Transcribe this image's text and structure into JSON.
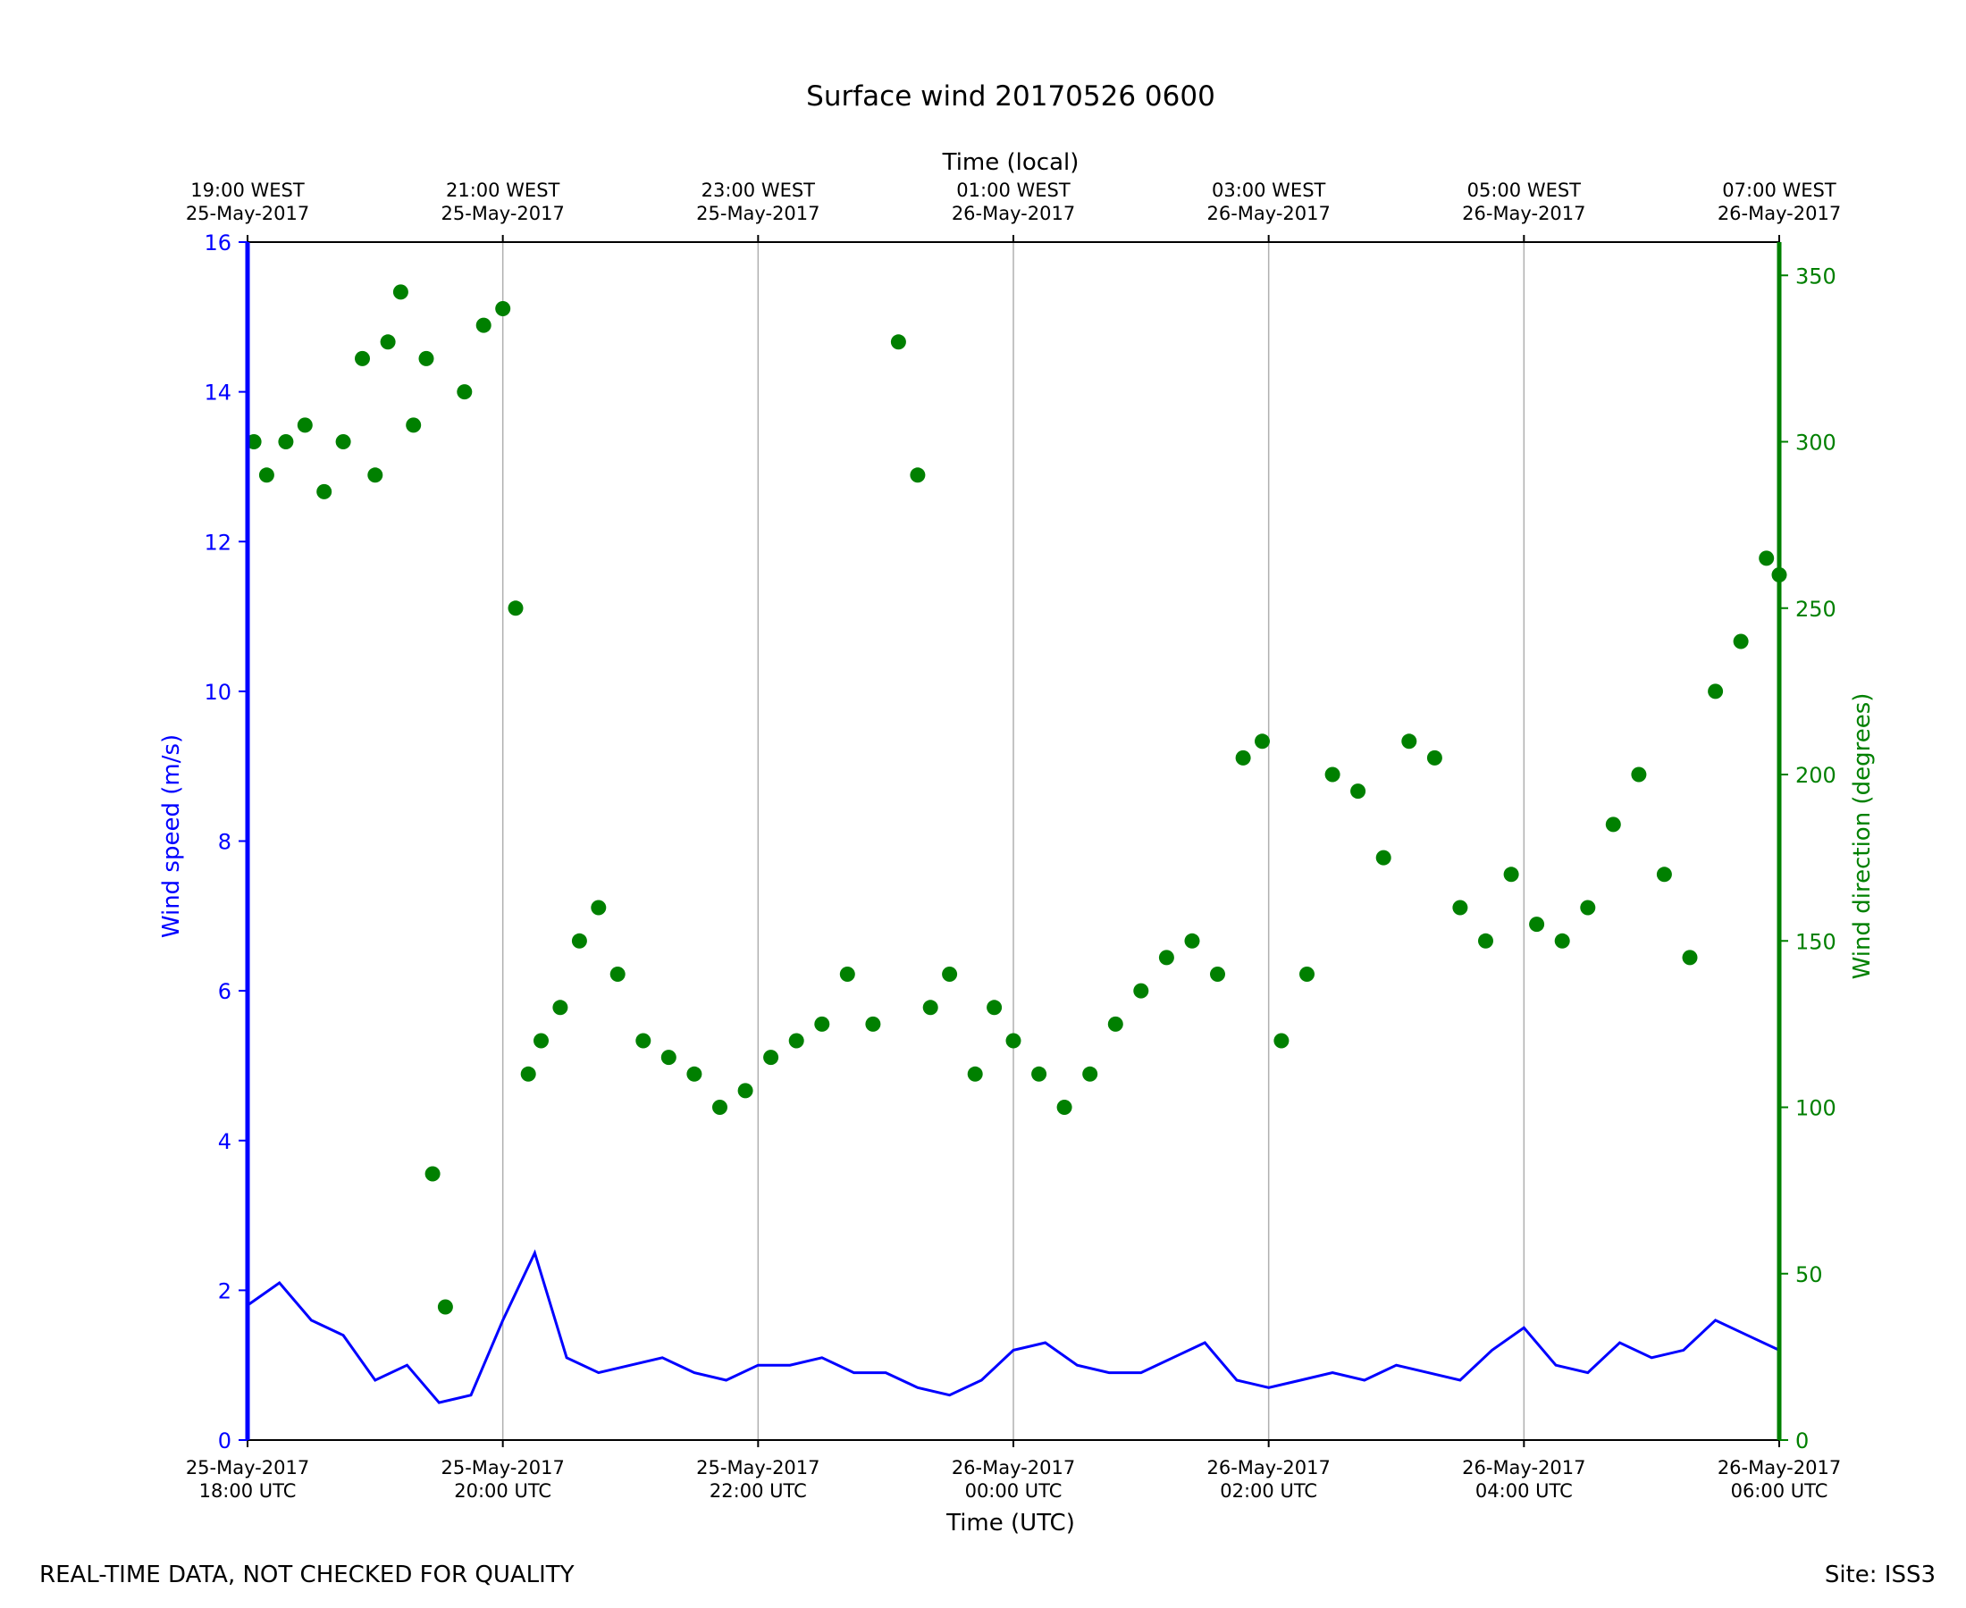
{
  "chart_data": {
    "type": "line+scatter",
    "title": "Surface wind 20170526 0600",
    "xlabel_bottom": "Time (UTC)",
    "xlabel_top": "Time (local)",
    "ylabel_left": "Wind speed (m/s)",
    "ylabel_right": "Wind direction (degrees)",
    "x_range_hours": [
      0,
      12
    ],
    "ylim_left": [
      0,
      16
    ],
    "ylim_right": [
      0,
      360
    ],
    "grid": "vertical",
    "colors": {
      "speed": "#0000ff",
      "direction": "#008000",
      "axis": "#000000",
      "grid": "#b0b0b0"
    },
    "bottom_ticks": [
      {
        "h": 0,
        "line1": "25-May-2017",
        "line2": "18:00 UTC"
      },
      {
        "h": 2,
        "line1": "25-May-2017",
        "line2": "20:00 UTC"
      },
      {
        "h": 4,
        "line1": "25-May-2017",
        "line2": "22:00 UTC"
      },
      {
        "h": 6,
        "line1": "26-May-2017",
        "line2": "00:00 UTC"
      },
      {
        "h": 8,
        "line1": "26-May-2017",
        "line2": "02:00 UTC"
      },
      {
        "h": 10,
        "line1": "26-May-2017",
        "line2": "04:00 UTC"
      },
      {
        "h": 12,
        "line1": "26-May-2017",
        "line2": "06:00 UTC"
      }
    ],
    "top_ticks": [
      {
        "h": 0,
        "line1": "19:00 WEST",
        "line2": "25-May-2017"
      },
      {
        "h": 2,
        "line1": "21:00 WEST",
        "line2": "25-May-2017"
      },
      {
        "h": 4,
        "line1": "23:00 WEST",
        "line2": "25-May-2017"
      },
      {
        "h": 6,
        "line1": "01:00 WEST",
        "line2": "26-May-2017"
      },
      {
        "h": 8,
        "line1": "03:00 WEST",
        "line2": "26-May-2017"
      },
      {
        "h": 10,
        "line1": "05:00 WEST",
        "line2": "26-May-2017"
      },
      {
        "h": 12,
        "line1": "07:00 WEST",
        "line2": "26-May-2017"
      }
    ],
    "left_ticks": [
      0,
      2,
      4,
      6,
      8,
      10,
      12,
      14,
      16
    ],
    "right_ticks": [
      0,
      50,
      100,
      150,
      200,
      250,
      300,
      350
    ],
    "speed_series": {
      "name": "Wind speed",
      "x_hours": [
        0.0,
        0.25,
        0.5,
        0.75,
        1.0,
        1.25,
        1.5,
        1.75,
        2.0,
        2.25,
        2.5,
        2.75,
        3.0,
        3.25,
        3.5,
        3.75,
        4.0,
        4.25,
        4.5,
        4.75,
        5.0,
        5.25,
        5.5,
        5.75,
        6.0,
        6.25,
        6.5,
        6.75,
        7.0,
        7.25,
        7.5,
        7.75,
        8.0,
        8.25,
        8.5,
        8.75,
        9.0,
        9.25,
        9.5,
        9.75,
        10.0,
        10.25,
        10.5,
        10.75,
        11.0,
        11.25,
        11.5,
        11.75,
        12.0
      ],
      "values": [
        1.8,
        2.1,
        1.6,
        1.4,
        0.8,
        1.0,
        0.5,
        0.6,
        1.6,
        2.5,
        1.1,
        0.9,
        1.0,
        1.1,
        0.9,
        0.8,
        1.0,
        1.0,
        1.1,
        0.9,
        0.9,
        0.7,
        0.6,
        0.8,
        1.2,
        1.3,
        1.0,
        0.9,
        0.9,
        1.1,
        1.3,
        0.8,
        0.7,
        0.8,
        0.9,
        0.8,
        1.0,
        0.9,
        0.8,
        1.2,
        1.5,
        1.0,
        0.9,
        1.3,
        1.1,
        1.2,
        1.6,
        1.4,
        1.2
      ]
    },
    "direction_series": {
      "name": "Wind direction",
      "x_hours": [
        0.05,
        0.15,
        0.3,
        0.45,
        0.6,
        0.75,
        0.9,
        1.0,
        1.1,
        1.2,
        1.3,
        1.4,
        1.45,
        1.55,
        1.7,
        1.85,
        2.0,
        2.1,
        2.2,
        2.3,
        2.45,
        2.6,
        2.75,
        2.9,
        3.1,
        3.3,
        3.5,
        3.7,
        3.9,
        4.1,
        4.3,
        4.5,
        4.7,
        4.9,
        5.1,
        5.25,
        5.35,
        5.5,
        5.7,
        5.85,
        6.0,
        6.2,
        6.4,
        6.6,
        6.8,
        7.0,
        7.2,
        7.4,
        7.6,
        7.8,
        7.95,
        8.1,
        8.3,
        8.5,
        8.7,
        8.9,
        9.1,
        9.3,
        9.5,
        9.7,
        9.9,
        10.1,
        10.3,
        10.5,
        10.7,
        10.9,
        11.1,
        11.3,
        11.5,
        11.7,
        11.9,
        12.0
      ],
      "values": [
        300,
        290,
        300,
        305,
        285,
        300,
        325,
        290,
        330,
        345,
        305,
        325,
        80,
        40,
        315,
        335,
        340,
        250,
        110,
        120,
        130,
        150,
        160,
        140,
        120,
        115,
        110,
        100,
        105,
        115,
        120,
        125,
        140,
        125,
        330,
        290,
        130,
        140,
        110,
        130,
        120,
        110,
        100,
        110,
        125,
        135,
        145,
        150,
        140,
        205,
        210,
        120,
        140,
        200,
        195,
        175,
        210,
        205,
        160,
        150,
        170,
        155,
        150,
        160,
        185,
        200,
        170,
        145,
        225,
        240,
        265,
        260
      ]
    }
  },
  "footer": {
    "left": "REAL-TIME DATA, NOT CHECKED FOR QUALITY",
    "right": "Site: ISS3"
  }
}
